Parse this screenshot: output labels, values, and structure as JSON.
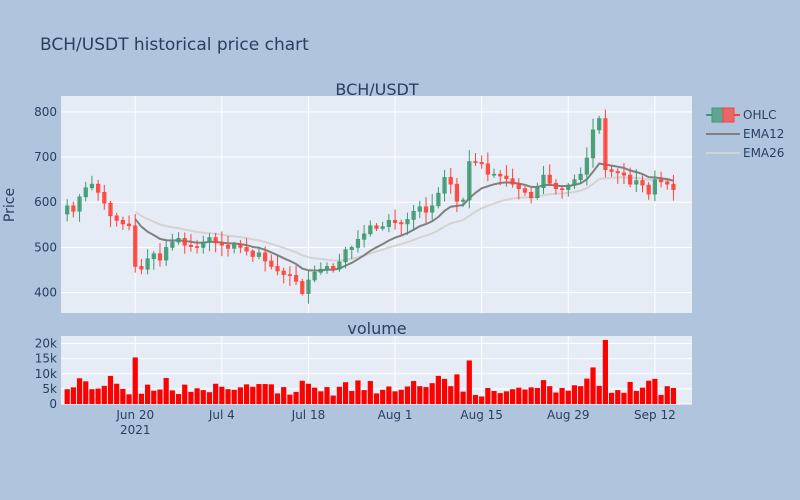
{
  "title": "BCH/USDT historical price chart",
  "chart_data": {
    "type": "candlestick",
    "title": "BCH/USDT historical price chart",
    "subplots": [
      {
        "title": "BCH/USDT",
        "ylabel": "Price",
        "ylim": [
          355,
          835
        ],
        "yticks": [
          400,
          500,
          600,
          700,
          800
        ]
      },
      {
        "title": "volume",
        "ylabel": "",
        "ylim": [
          0,
          22500
        ],
        "yticks": [
          0,
          5000,
          10000,
          15000,
          20000
        ],
        "ytick_labels": [
          "0",
          "5k",
          "10k",
          "15k",
          "20k"
        ]
      }
    ],
    "x_range": [
      "2021-06-08",
      "2021-09-18"
    ],
    "x_ticks": [
      {
        "date": "2021-06-20",
        "label": "Jun 20",
        "sublabel": "2021"
      },
      {
        "date": "2021-07-04",
        "label": "Jul 4",
        "sublabel": ""
      },
      {
        "date": "2021-07-18",
        "label": "Jul 18",
        "sublabel": ""
      },
      {
        "date": "2021-08-01",
        "label": "Aug 1",
        "sublabel": ""
      },
      {
        "date": "2021-08-15",
        "label": "Aug 15",
        "sublabel": ""
      },
      {
        "date": "2021-08-29",
        "label": "Aug 29",
        "sublabel": ""
      },
      {
        "date": "2021-09-12",
        "label": "Sep 12",
        "sublabel": ""
      }
    ],
    "start_date": "2021-06-09",
    "close": [
      592,
      580,
      612,
      632,
      640,
      622,
      598,
      570,
      560,
      552,
      548,
      458,
      452,
      475,
      486,
      472,
      500,
      512,
      520,
      505,
      502,
      500,
      512,
      522,
      510,
      505,
      498,
      508,
      500,
      492,
      480,
      488,
      470,
      458,
      448,
      440,
      438,
      425,
      398,
      428,
      445,
      452,
      458,
      452,
      468,
      495,
      500,
      518,
      530,
      548,
      542,
      546,
      560,
      555,
      552,
      562,
      580,
      590,
      578,
      592,
      620,
      655,
      640,
      602,
      605,
      690,
      688,
      685,
      662,
      662,
      658,
      652,
      640,
      630,
      622,
      610,
      632,
      660,
      642,
      630,
      628,
      638,
      650,
      662,
      698,
      760,
      785,
      672,
      668,
      665,
      660,
      640,
      648,
      638,
      618,
      650,
      645,
      640,
      628
    ]
  },
  "legend": [
    {
      "name": "OHLC",
      "color": "#3d9970"
    },
    {
      "name": "EMA12",
      "color": "#808080"
    },
    {
      "name": "EMA26",
      "color": "#d3d3d3"
    }
  ],
  "colors": {
    "up": "#3d9970",
    "down": "#ff4136",
    "volume": "#ff0000",
    "plot_bg": "#e5ecf6",
    "paper_bg": "#b0c4de"
  }
}
